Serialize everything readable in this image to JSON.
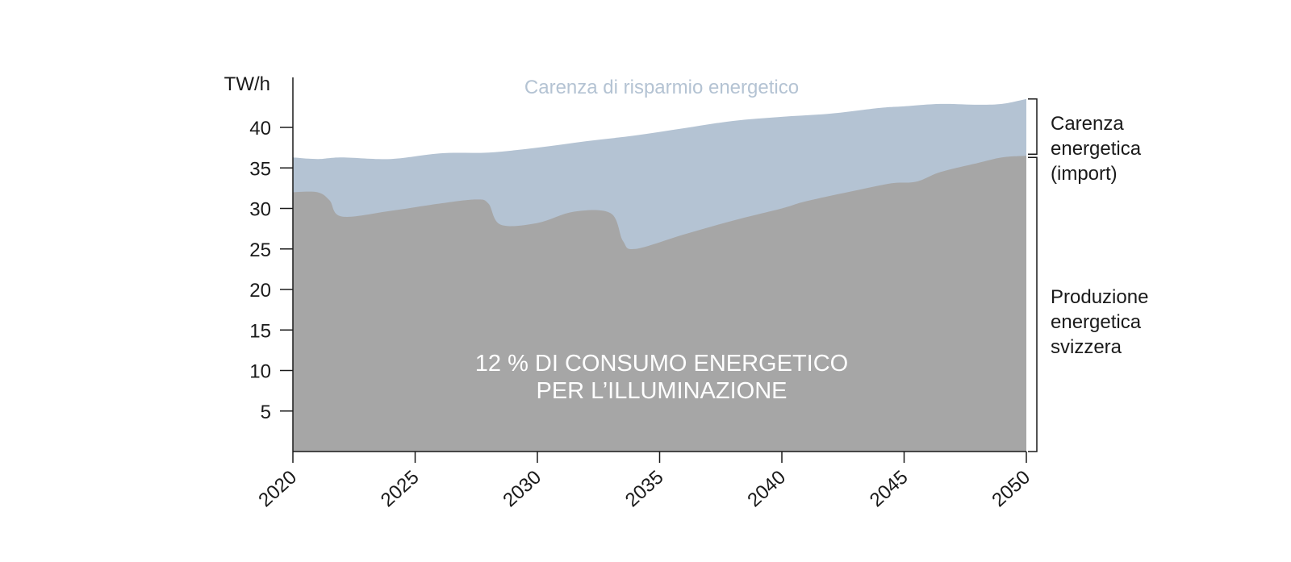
{
  "chart_data": {
    "type": "area",
    "y_unit_label": "TW/h",
    "x_ticks": [
      "2020",
      "2025",
      "2030",
      "2035",
      "2040",
      "2045",
      "2050"
    ],
    "y_ticks": [
      "5",
      "10",
      "15",
      "20",
      "25",
      "30",
      "35",
      "40"
    ],
    "xlim": [
      2020,
      2050
    ],
    "ylim": [
      0,
      46
    ],
    "colors": {
      "production": "#a6a6a6",
      "shortage": "#b4c3d3",
      "annotation_light": "#b4c3d3"
    },
    "series": [
      {
        "name": "Produzione energetica svizzera",
        "x": [
          2020,
          2021,
          2021.5,
          2022,
          2024,
          2026,
          2027.5,
          2028,
          2028.5,
          2030,
          2031.5,
          2033,
          2033.5,
          2034,
          2036,
          2038,
          2040,
          2041,
          2043,
          2044.5,
          2045.5,
          2046.5,
          2048,
          2049,
          2050
        ],
        "values": [
          32,
          32,
          31,
          29,
          29.7,
          30.6,
          31.1,
          30.6,
          28,
          28.2,
          29.6,
          29.4,
          26,
          25,
          26.8,
          28.5,
          30,
          30.9,
          32.2,
          33.1,
          33.3,
          34.5,
          35.6,
          36.3,
          36.5
        ]
      },
      {
        "name": "Carenza energetica (import)",
        "x": [
          2020,
          2021,
          2022,
          2024,
          2026,
          2028,
          2030,
          2032,
          2034,
          2036,
          2038,
          2040,
          2042,
          2044,
          2045,
          2046.5,
          2048,
          2049,
          2050
        ],
        "values": [
          36.3,
          36.1,
          36.3,
          36.1,
          36.8,
          36.9,
          37.5,
          38.3,
          39.0,
          39.9,
          40.8,
          41.3,
          41.7,
          42.4,
          42.6,
          42.9,
          42.8,
          42.9,
          43.5
        ]
      }
    ],
    "annotations": {
      "top": "Carenza di risparmio energetico",
      "center_line1": "12 % DI CONSUMO ENERGETICO",
      "center_line2": "PER L’ILLUMINAZIONE"
    }
  },
  "side_labels": {
    "shortage": "Carenza\nenergetica\n(import)",
    "production": "Produzione\nenergetica\nsvizzera"
  }
}
